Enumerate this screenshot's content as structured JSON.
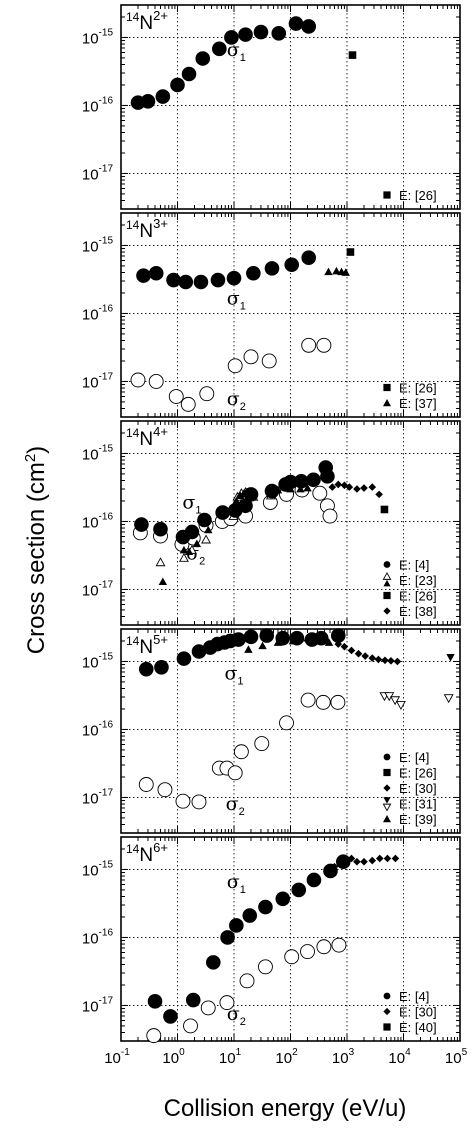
{
  "figure": {
    "xlabel": "Collision energy (eV/u)",
    "ylabel": "Cross section (cm2)"
  },
  "chart_data": [
    {
      "type": "scatter",
      "panel_label": "14N2+",
      "xlabel": "Collision energy (eV/u)",
      "ylabel": "Cross section (cm2)",
      "x_scale": "log",
      "y_scale": "log",
      "xlim": [
        0.1,
        100000
      ],
      "ylim": [
        3e-18,
        3e-15
      ],
      "grid": true,
      "x_tick_labels": [
        "10-1",
        "100",
        "101",
        "102",
        "103",
        "104",
        "105"
      ],
      "y_tick_labels": [
        "10-15",
        "10-16",
        "10-17"
      ],
      "annotations": [
        {
          "text": "σ1",
          "x": 11,
          "y": 6.5e-16
        }
      ],
      "legend": {
        "position": "bottom-right",
        "entries": [
          {
            "label": "E: [26]",
            "marker": "square"
          }
        ]
      },
      "series": [
        {
          "marker": "big-filled-circle",
          "x": [
            0.2,
            0.3,
            0.55,
            1.0,
            1.6,
            2.8,
            5.5,
            9.0,
            16,
            30,
            62,
            125,
            210
          ],
          "y": [
            1.1e-16,
            1.15e-16,
            1.35e-16,
            2e-16,
            2.9e-16,
            4.9e-16,
            6.8e-16,
            1e-15,
            1.1e-15,
            1.2e-15,
            1.15e-15,
            1.6e-15,
            1.45e-15
          ]
        },
        {
          "marker": "square",
          "x": [
            1250
          ],
          "y": [
            5.5e-16
          ]
        }
      ]
    },
    {
      "type": "scatter",
      "panel_label": "14N3+",
      "xlabel": "Collision energy (eV/u)",
      "ylabel": "Cross section (cm2)",
      "x_scale": "log",
      "y_scale": "log",
      "xlim": [
        0.1,
        100000
      ],
      "ylim": [
        3e-18,
        3e-15
      ],
      "grid": true,
      "x_tick_labels": [
        "10-1",
        "100",
        "101",
        "102",
        "103",
        "104",
        "105"
      ],
      "y_tick_labels": [
        "10-15",
        "10-16",
        "10-17"
      ],
      "annotations": [
        {
          "text": "σ1",
          "x": 11,
          "y": 1.65e-16
        },
        {
          "text": "σ2",
          "x": 11,
          "y": 5.5e-18
        }
      ],
      "legend": {
        "position": "bottom-right",
        "entries": [
          {
            "label": "E: [26]",
            "marker": "square"
          },
          {
            "label": "E: [37]",
            "marker": "triangle"
          }
        ]
      },
      "series": [
        {
          "marker": "big-filled-circle",
          "x": [
            0.25,
            0.42,
            0.85,
            1.4,
            2.6,
            5.2,
            10,
            22,
            47,
            105,
            210
          ],
          "y": [
            3.6e-16,
            3.9e-16,
            3.1e-16,
            2.9e-16,
            2.9e-16,
            3.1e-16,
            3.3e-16,
            3.9e-16,
            4.6e-16,
            5.2e-16,
            6.6e-16
          ]
        },
        {
          "marker": "big-open-circle",
          "x": [
            0.2,
            0.42,
            0.95,
            1.55,
            3.3,
            10.5,
            20,
            42,
            210,
            390
          ],
          "y": [
            1.05e-17,
            1e-17,
            6e-18,
            4.6e-18,
            6.6e-18,
            1.7e-17,
            2.3e-17,
            2e-17,
            3.4e-17,
            3.4e-17
          ]
        },
        {
          "marker": "triangle",
          "x": [
            470,
            650,
            800,
            950
          ],
          "y": [
            4.1e-16,
            4.2e-16,
            4.1e-16,
            4e-16
          ]
        },
        {
          "marker": "square",
          "x": [
            1150
          ],
          "y": [
            8e-16
          ]
        }
      ]
    },
    {
      "type": "scatter",
      "panel_label": "14N4+",
      "xlabel": "Collision energy (eV/u)",
      "ylabel": "Cross section (cm2)",
      "x_scale": "log",
      "y_scale": "log",
      "xlim": [
        0.1,
        100000
      ],
      "ylim": [
        3e-18,
        3e-15
      ],
      "grid": true,
      "x_tick_labels": [
        "10-1",
        "100",
        "101",
        "102",
        "103",
        "104",
        "105"
      ],
      "y_tick_labels": [
        "10-15",
        "10-16",
        "10-17"
      ],
      "annotations": [
        {
          "text": "σ1",
          "x": 1.8,
          "y": 1.9e-16
        },
        {
          "text": "σ2",
          "x": 2.1,
          "y": 3.4e-17
        }
      ],
      "legend": {
        "position": "bottom-right",
        "entries": [
          {
            "label": "E: [4]",
            "marker": "circle"
          },
          {
            "label": "E: [23]",
            "marker": "triangle-pair"
          },
          {
            "label": "E: [26]",
            "marker": "square"
          },
          {
            "label": "E: [38]",
            "marker": "diamond"
          }
        ]
      },
      "series": [
        {
          "marker": "big-filled-circle",
          "x": [
            0.23,
            0.5,
            1.25,
            1.8,
            3.0,
            6.3,
            10.5,
            16,
            20,
            47,
            82,
            100,
            155,
            255,
            420,
            450
          ],
          "y": [
            9e-17,
            7.7e-17,
            5.9e-17,
            7e-17,
            1.05e-16,
            1.35e-16,
            1.45e-16,
            1.7e-16,
            2.5e-16,
            2.8e-16,
            3.5e-16,
            3.8e-16,
            3.9e-16,
            4.1e-16,
            6.2e-16,
            4.6e-16
          ]
        },
        {
          "marker": "big-open-circle",
          "x": [
            0.22,
            0.5,
            1.2,
            1.9,
            3.2,
            6.2,
            8.8,
            16,
            44,
            85,
            160,
            330,
            450,
            500
          ],
          "y": [
            6.8e-17,
            6.1e-17,
            4.6e-17,
            5.7e-17,
            8.8e-17,
            1e-16,
            1.1e-16,
            1.2e-16,
            1.9e-16,
            2.5e-16,
            2.9e-16,
            2.6e-16,
            1.7e-16,
            1.2e-16
          ]
        },
        {
          "marker": "triangle",
          "x": [
            0.55,
            1.3,
            1.6,
            2.2,
            3.5,
            11,
            13,
            15,
            17,
            19,
            21,
            45,
            60,
            100,
            150,
            200
          ],
          "y": [
            1.3e-17,
            3.8e-17,
            3.6e-17,
            4.7e-17,
            7.5e-17,
            2e-16,
            2.4e-16,
            2.6e-16,
            2.7e-16,
            2.5e-16,
            2.3e-16,
            2.6e-16,
            2.9e-16,
            3e-16,
            3e-16,
            3.1e-16
          ]
        },
        {
          "marker": "open-triangle",
          "x": [
            0.5,
            1.3,
            1.8,
            3.2,
            9.8,
            11.5,
            13.5,
            16,
            18.5,
            22,
            45,
            85
          ],
          "y": [
            2.5e-17,
            2.9e-17,
            3.8e-17,
            5.4e-17,
            1.2e-16,
            2.3e-16,
            2.6e-16,
            2.7e-16,
            2.6e-16,
            2.3e-16,
            2.4e-16,
            3.3e-16
          ]
        },
        {
          "marker": "diamond",
          "x": [
            550,
            700,
            900,
            1100,
            1500,
            2000,
            2800,
            3700
          ],
          "y": [
            3.2e-16,
            3.5e-16,
            3.4e-16,
            3.2e-16,
            3e-16,
            3.1e-16,
            3.2e-16,
            2.5e-16
          ]
        },
        {
          "marker": "square",
          "x": [
            4600
          ],
          "y": [
            1.5e-16
          ]
        }
      ]
    },
    {
      "type": "scatter",
      "panel_label": "14N5+",
      "xlabel": "Collision energy (eV/u)",
      "ylabel": "Cross section (cm2)",
      "x_scale": "log",
      "y_scale": "log",
      "xlim": [
        0.1,
        100000
      ],
      "ylim": [
        3e-18,
        3e-15
      ],
      "grid": true,
      "x_tick_labels": [
        "10-1",
        "100",
        "101",
        "102",
        "103",
        "104",
        "105"
      ],
      "y_tick_labels": [
        "10-15",
        "10-16",
        "10-17"
      ],
      "annotations": [
        {
          "text": "σ1",
          "x": 10,
          "y": 6.7e-16
        },
        {
          "text": "σ2",
          "x": 10.5,
          "y": 8e-18
        }
      ],
      "legend": {
        "position": "bottom-right",
        "entries": [
          {
            "label": "E: [4]",
            "marker": "circle"
          },
          {
            "label": "E: [26]",
            "marker": "square"
          },
          {
            "label": "E: [30]",
            "marker": "diamond"
          },
          {
            "label": "E: [31]",
            "marker": "triangle-down-pair"
          },
          {
            "label": "E: [39]",
            "marker": "triangle"
          }
        ]
      },
      "series": [
        {
          "marker": "big-filled-circle",
          "x": [
            0.28,
            0.52,
            1.3,
            2.4,
            3.8,
            5.1,
            6.8,
            8.6,
            12,
            20,
            38,
            73,
            130,
            240,
            350,
            700
          ],
          "y": [
            7.7e-16,
            8.2e-16,
            1.1e-15,
            1.4e-15,
            1.6e-15,
            1.8e-15,
            1.9e-15,
            2e-15,
            2.1e-15,
            2.3e-15,
            2.4e-15,
            2.2e-15,
            2.2e-15,
            2.1e-15,
            2.2e-15,
            2.4e-15
          ]
        },
        {
          "marker": "triangle",
          "x": [
            18,
            32,
            60,
            110,
            200,
            320,
            480
          ],
          "y": [
            1.5e-15,
            1.7e-15,
            1.9e-15,
            2e-15,
            2.2e-15,
            2e-15,
            1.9e-15
          ]
        },
        {
          "marker": "diamond",
          "x": [
            700,
            900,
            1200,
            1600,
            2100,
            2800,
            3600,
            4700,
            6000,
            7800
          ],
          "y": [
            1.8e-15,
            1.65e-15,
            1.45e-15,
            1.3e-15,
            1.2e-15,
            1.12e-15,
            1.07e-15,
            1.04e-15,
            1.02e-15,
            1e-15
          ]
        },
        {
          "marker": "big-open-circle",
          "x": [
            0.28,
            0.6,
            1.25,
            2.4,
            5.5,
            7.5,
            10.5,
            13.5,
            31,
            85,
            205,
            380,
            690
          ],
          "y": [
            1.55e-17,
            1.3e-17,
            8.8e-18,
            8.6e-18,
            2.7e-17,
            2.7e-17,
            2.3e-17,
            4.7e-17,
            6.2e-17,
            1.25e-16,
            2.7e-16,
            2.5e-16,
            2.5e-16
          ]
        },
        {
          "marker": "open-triangle-down",
          "x": [
            4600,
            5600,
            7100,
            9000,
            63000
          ],
          "y": [
            3.1e-16,
            3.1e-16,
            2.7e-16,
            2.3e-16,
            2.9e-16
          ]
        },
        {
          "marker": "triangle-down",
          "x": [
            68000
          ],
          "y": [
            1.15e-15
          ]
        }
      ]
    },
    {
      "type": "scatter",
      "panel_label": "14N6+",
      "xlabel": "Collision energy (eV/u)",
      "ylabel": "Cross section (cm2)",
      "x_scale": "log",
      "y_scale": "log",
      "xlim": [
        0.1,
        100000
      ],
      "ylim": [
        3e-18,
        3e-15
      ],
      "grid": true,
      "x_tick_labels": [
        "10-1",
        "100",
        "101",
        "102",
        "103",
        "104",
        "105"
      ],
      "y_tick_labels": [
        "10-15",
        "10-16",
        "10-17"
      ],
      "annotations": [
        {
          "text": "σ1",
          "x": 11,
          "y": 6.5e-16
        },
        {
          "text": "σ2",
          "x": 11,
          "y": 7.5e-18
        }
      ],
      "legend": {
        "position": "bottom-right",
        "entries": [
          {
            "label": "E: [4]",
            "marker": "circle"
          },
          {
            "label": "E: [30]",
            "marker": "diamond"
          },
          {
            "label": "E: [40]",
            "marker": "square"
          }
        ]
      },
      "series": [
        {
          "marker": "big-filled-circle",
          "x": [
            0.4,
            0.75,
            1.9,
            4.3,
            7.7,
            11,
            19,
            36,
            73,
            140,
            260,
            510,
            860
          ],
          "y": [
            1.15e-17,
            6.9e-18,
            1.2e-17,
            4.3e-17,
            1e-16,
            1.5e-16,
            2.1e-16,
            2.8e-16,
            3.7e-16,
            5e-16,
            7e-16,
            9.5e-16,
            1.3e-15
          ]
        },
        {
          "marker": "diamond",
          "x": [
            600,
            750,
            950,
            1200,
            1500,
            2000,
            2800,
            3800,
            5200,
            7200
          ],
          "y": [
            1.1e-15,
            1.3e-15,
            1.4e-15,
            1.45e-15,
            1.3e-15,
            1.3e-15,
            1.35e-15,
            1.45e-15,
            1.45e-15,
            1.45e-15
          ]
        },
        {
          "marker": "big-open-circle",
          "x": [
            0.38,
            1.7,
            3.5,
            7.5,
            17,
            36,
            105,
            200,
            390,
            720
          ],
          "y": [
            3.6e-18,
            5e-18,
            9.2e-18,
            1.1e-17,
            2.3e-17,
            3.7e-17,
            5.2e-17,
            6.2e-17,
            7.3e-17,
            7.7e-17
          ]
        }
      ]
    }
  ]
}
